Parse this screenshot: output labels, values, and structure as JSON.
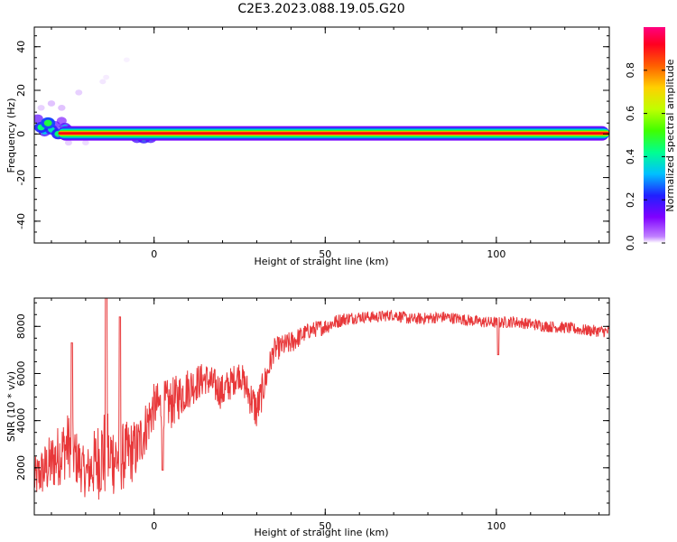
{
  "figure_title": "C2E3.2023.088.19.05.G20",
  "chart_data": [
    {
      "type": "heatmap",
      "xlabel": "Height of straight line (km)",
      "ylabel": "Frequency (Hz)",
      "xlim": [
        -35,
        133
      ],
      "ylim": [
        -50,
        49
      ],
      "xticks": [
        0,
        50,
        100
      ],
      "yticks": [
        -40,
        -20,
        0,
        20,
        40
      ],
      "colorbar": {
        "label": "Normalized spectral amplitude",
        "range": [
          0,
          1
        ],
        "ticks": [
          0.0,
          0.2,
          0.4,
          0.6,
          0.8
        ],
        "colormap": [
          "#ffffff",
          "#8000ff",
          "#2020ff",
          "#00c0ff",
          "#00ff80",
          "#40ff00",
          "#ffff00",
          "#ff8000",
          "#ff0000",
          "#ff0080"
        ]
      },
      "main_ridge": {
        "frequency": 0.3,
        "x_range": [
          -28,
          133
        ],
        "amplitude": 0.9
      },
      "scatter_blobs": [
        {
          "x": -34,
          "y": 7,
          "amp": 0.3
        },
        {
          "x": -33,
          "y": 3,
          "amp": 0.45
        },
        {
          "x": -32,
          "y": 1,
          "amp": 0.35
        },
        {
          "x": -31,
          "y": 5,
          "amp": 0.5
        },
        {
          "x": -30,
          "y": 2,
          "amp": 0.4
        },
        {
          "x": -29,
          "y": 4,
          "amp": 0.3
        },
        {
          "x": -28,
          "y": 0,
          "amp": 0.45
        },
        {
          "x": -27,
          "y": 6,
          "amp": 0.25
        },
        {
          "x": -26,
          "y": 3,
          "amp": 0.35
        },
        {
          "x": -25,
          "y": 2,
          "amp": 0.3
        },
        {
          "x": -24,
          "y": 1,
          "amp": 0.2
        },
        {
          "x": -22,
          "y": 1,
          "amp": 0.3
        },
        {
          "x": -20,
          "y": 1,
          "amp": 0.25
        },
        {
          "x": -18,
          "y": 0,
          "amp": 0.2
        },
        {
          "x": -15,
          "y": 0,
          "amp": 0.2
        },
        {
          "x": -12,
          "y": 0,
          "amp": 0.25
        },
        {
          "x": -9,
          "y": -1,
          "amp": 0.2
        },
        {
          "x": -5,
          "y": -2,
          "amp": 0.35
        },
        {
          "x": -3,
          "y": -2,
          "amp": 0.4
        },
        {
          "x": -1,
          "y": -2,
          "amp": 0.35
        },
        {
          "x": 1,
          "y": -1,
          "amp": 0.25
        },
        {
          "x": 3,
          "y": 0,
          "amp": 0.2
        },
        {
          "x": -33,
          "y": 12,
          "amp": 0.1
        },
        {
          "x": -30,
          "y": 14,
          "amp": 0.12
        },
        {
          "x": -27,
          "y": 12,
          "amp": 0.12
        },
        {
          "x": -22,
          "y": 19,
          "amp": 0.1
        },
        {
          "x": -15,
          "y": 24,
          "amp": 0.06
        },
        {
          "x": -14,
          "y": 26,
          "amp": 0.05
        },
        {
          "x": -8,
          "y": 34,
          "amp": 0.04
        },
        {
          "x": 30,
          "y": 0,
          "amp": 0.15
        },
        {
          "x": -25,
          "y": -4,
          "amp": 0.1
        },
        {
          "x": -20,
          "y": -4,
          "amp": 0.08
        }
      ]
    },
    {
      "type": "line",
      "xlabel": "Height of straight line (km)",
      "ylabel": "SNR (10 * v/v)",
      "xlim": [
        -35,
        133
      ],
      "ylim": [
        0,
        9200
      ],
      "xticks": [
        0,
        50,
        100
      ],
      "yticks": [
        2000,
        4000,
        6000,
        8000
      ],
      "color": "#e8383a",
      "x_start": -35,
      "x_step": 5,
      "y": [
        1500,
        2200,
        3000,
        1700,
        2600,
        2400,
        2800,
        4600,
        4700,
        5400,
        5800,
        5200,
        6000,
        4400,
        7000,
        7300,
        7800,
        8000,
        8300,
        8400,
        8400,
        8500,
        8300,
        8350,
        8400,
        8300,
        8200,
        8150,
        8200,
        8100,
        8000,
        7950,
        7850,
        7800,
        7750
      ],
      "noise_amp": [
        900,
        1300,
        1400,
        1000,
        2000,
        1500,
        1300,
        1000,
        1100,
        900,
        700,
        800,
        600,
        900,
        500,
        500,
        350,
        350,
        300,
        250,
        250,
        250,
        250,
        250,
        250,
        250,
        250,
        250,
        250,
        250,
        250,
        250,
        250,
        250,
        250
      ],
      "annotations": [
        {
          "x": -24,
          "y": 7300
        },
        {
          "x": -14,
          "y": 9200
        },
        {
          "x": -13,
          "y": 2000
        },
        {
          "x": -10,
          "y": 8400
        },
        {
          "x": 2.5,
          "y": 1900
        },
        {
          "x": 100.5,
          "y": 6800
        }
      ]
    }
  ]
}
